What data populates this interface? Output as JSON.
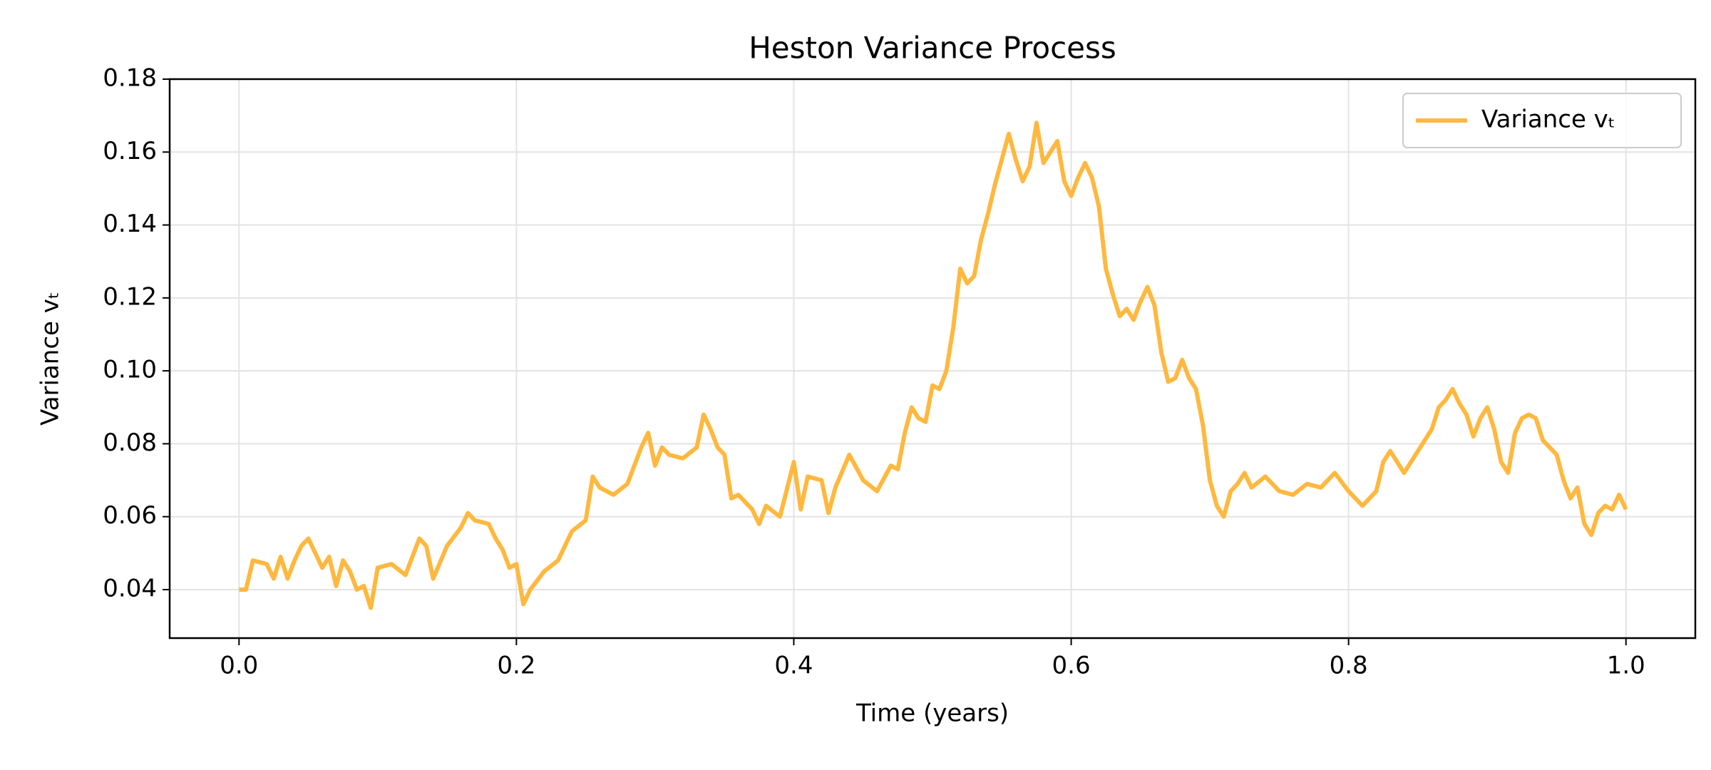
{
  "chart_data": {
    "type": "line",
    "title": "Heston Variance Process",
    "xlabel": "Time (years)",
    "ylabel": "Variance vₜ",
    "x": [
      0,
      0.005,
      0.01,
      0.02,
      0.025,
      0.03,
      0.035,
      0.04,
      0.045,
      0.05,
      0.055,
      0.06,
      0.065,
      0.07,
      0.075,
      0.08,
      0.085,
      0.09,
      0.095,
      0.1,
      0.11,
      0.12,
      0.13,
      0.135,
      0.14,
      0.15,
      0.16,
      0.165,
      0.17,
      0.18,
      0.185,
      0.19,
      0.195,
      0.2,
      0.205,
      0.21,
      0.22,
      0.23,
      0.24,
      0.25,
      0.255,
      0.26,
      0.27,
      0.28,
      0.29,
      0.295,
      0.3,
      0.305,
      0.31,
      0.32,
      0.33,
      0.335,
      0.34,
      0.345,
      0.35,
      0.355,
      0.36,
      0.37,
      0.375,
      0.38,
      0.39,
      0.4,
      0.405,
      0.41,
      0.42,
      0.425,
      0.43,
      0.44,
      0.45,
      0.46,
      0.47,
      0.475,
      0.48,
      0.485,
      0.49,
      0.495,
      0.5,
      0.505,
      0.51,
      0.515,
      0.52,
      0.525,
      0.53,
      0.535,
      0.54,
      0.545,
      0.55,
      0.555,
      0.56,
      0.565,
      0.57,
      0.575,
      0.58,
      0.585,
      0.59,
      0.595,
      0.6,
      0.605,
      0.61,
      0.615,
      0.62,
      0.625,
      0.63,
      0.635,
      0.64,
      0.645,
      0.65,
      0.655,
      0.66,
      0.665,
      0.67,
      0.675,
      0.68,
      0.685,
      0.69,
      0.695,
      0.7,
      0.705,
      0.71,
      0.715,
      0.72,
      0.725,
      0.73,
      0.74,
      0.75,
      0.76,
      0.77,
      0.78,
      0.79,
      0.8,
      0.81,
      0.82,
      0.825,
      0.83,
      0.84,
      0.85,
      0.86,
      0.865,
      0.87,
      0.875,
      0.88,
      0.885,
      0.89,
      0.895,
      0.9,
      0.905,
      0.91,
      0.915,
      0.92,
      0.925,
      0.93,
      0.935,
      0.94,
      0.945,
      0.95,
      0.955,
      0.96,
      0.965,
      0.97,
      0.975,
      0.98,
      0.985,
      0.99,
      0.995,
      1.0
    ],
    "series": [
      {
        "name": "Variance vₜ",
        "color": "#ffb83f",
        "values": [
          0.04,
          0.04,
          0.048,
          0.047,
          0.043,
          0.049,
          0.043,
          0.048,
          0.052,
          0.054,
          0.05,
          0.046,
          0.049,
          0.041,
          0.048,
          0.045,
          0.04,
          0.041,
          0.035,
          0.046,
          0.047,
          0.044,
          0.054,
          0.052,
          0.043,
          0.052,
          0.057,
          0.061,
          0.059,
          0.058,
          0.054,
          0.051,
          0.046,
          0.047,
          0.036,
          0.04,
          0.045,
          0.048,
          0.056,
          0.059,
          0.071,
          0.068,
          0.066,
          0.069,
          0.079,
          0.083,
          0.074,
          0.079,
          0.077,
          0.076,
          0.079,
          0.088,
          0.084,
          0.079,
          0.077,
          0.065,
          0.066,
          0.062,
          0.058,
          0.063,
          0.06,
          0.075,
          0.062,
          0.071,
          0.07,
          0.061,
          0.068,
          0.077,
          0.07,
          0.067,
          0.074,
          0.073,
          0.083,
          0.09,
          0.087,
          0.086,
          0.096,
          0.095,
          0.1,
          0.112,
          0.128,
          0.124,
          0.126,
          0.136,
          0.143,
          0.151,
          0.158,
          0.165,
          0.158,
          0.152,
          0.156,
          0.168,
          0.157,
          0.16,
          0.163,
          0.152,
          0.148,
          0.153,
          0.157,
          0.153,
          0.145,
          0.128,
          0.121,
          0.115,
          0.117,
          0.114,
          0.119,
          0.123,
          0.118,
          0.105,
          0.097,
          0.098,
          0.103,
          0.098,
          0.095,
          0.085,
          0.07,
          0.063,
          0.06,
          0.067,
          0.069,
          0.072,
          0.068,
          0.071,
          0.067,
          0.066,
          0.069,
          0.068,
          0.072,
          0.067,
          0.063,
          0.067,
          0.075,
          0.078,
          0.072,
          0.078,
          0.084,
          0.09,
          0.092,
          0.095,
          0.091,
          0.088,
          0.082,
          0.087,
          0.09,
          0.084,
          0.075,
          0.072,
          0.083,
          0.087,
          0.088,
          0.087,
          0.081,
          0.079,
          0.077,
          0.07,
          0.065,
          0.068,
          0.058,
          0.055,
          0.061,
          0.063,
          0.062,
          0.066,
          0.062
        ]
      }
    ],
    "xlim": [
      -0.05,
      1.05
    ],
    "ylim": [
      0.0267,
      0.18
    ],
    "xticks": [
      {
        "value": 0,
        "label": "0.0"
      },
      0.2,
      0.4,
      0.6,
      0.8,
      {
        "value": 1,
        "label": "1.0"
      }
    ],
    "yticks": [
      0.04,
      0.06,
      0.08,
      {
        "value": 0.1,
        "label": "0.10"
      },
      0.12,
      0.14,
      0.16,
      0.18
    ],
    "grid": true,
    "legend": "upper right"
  }
}
